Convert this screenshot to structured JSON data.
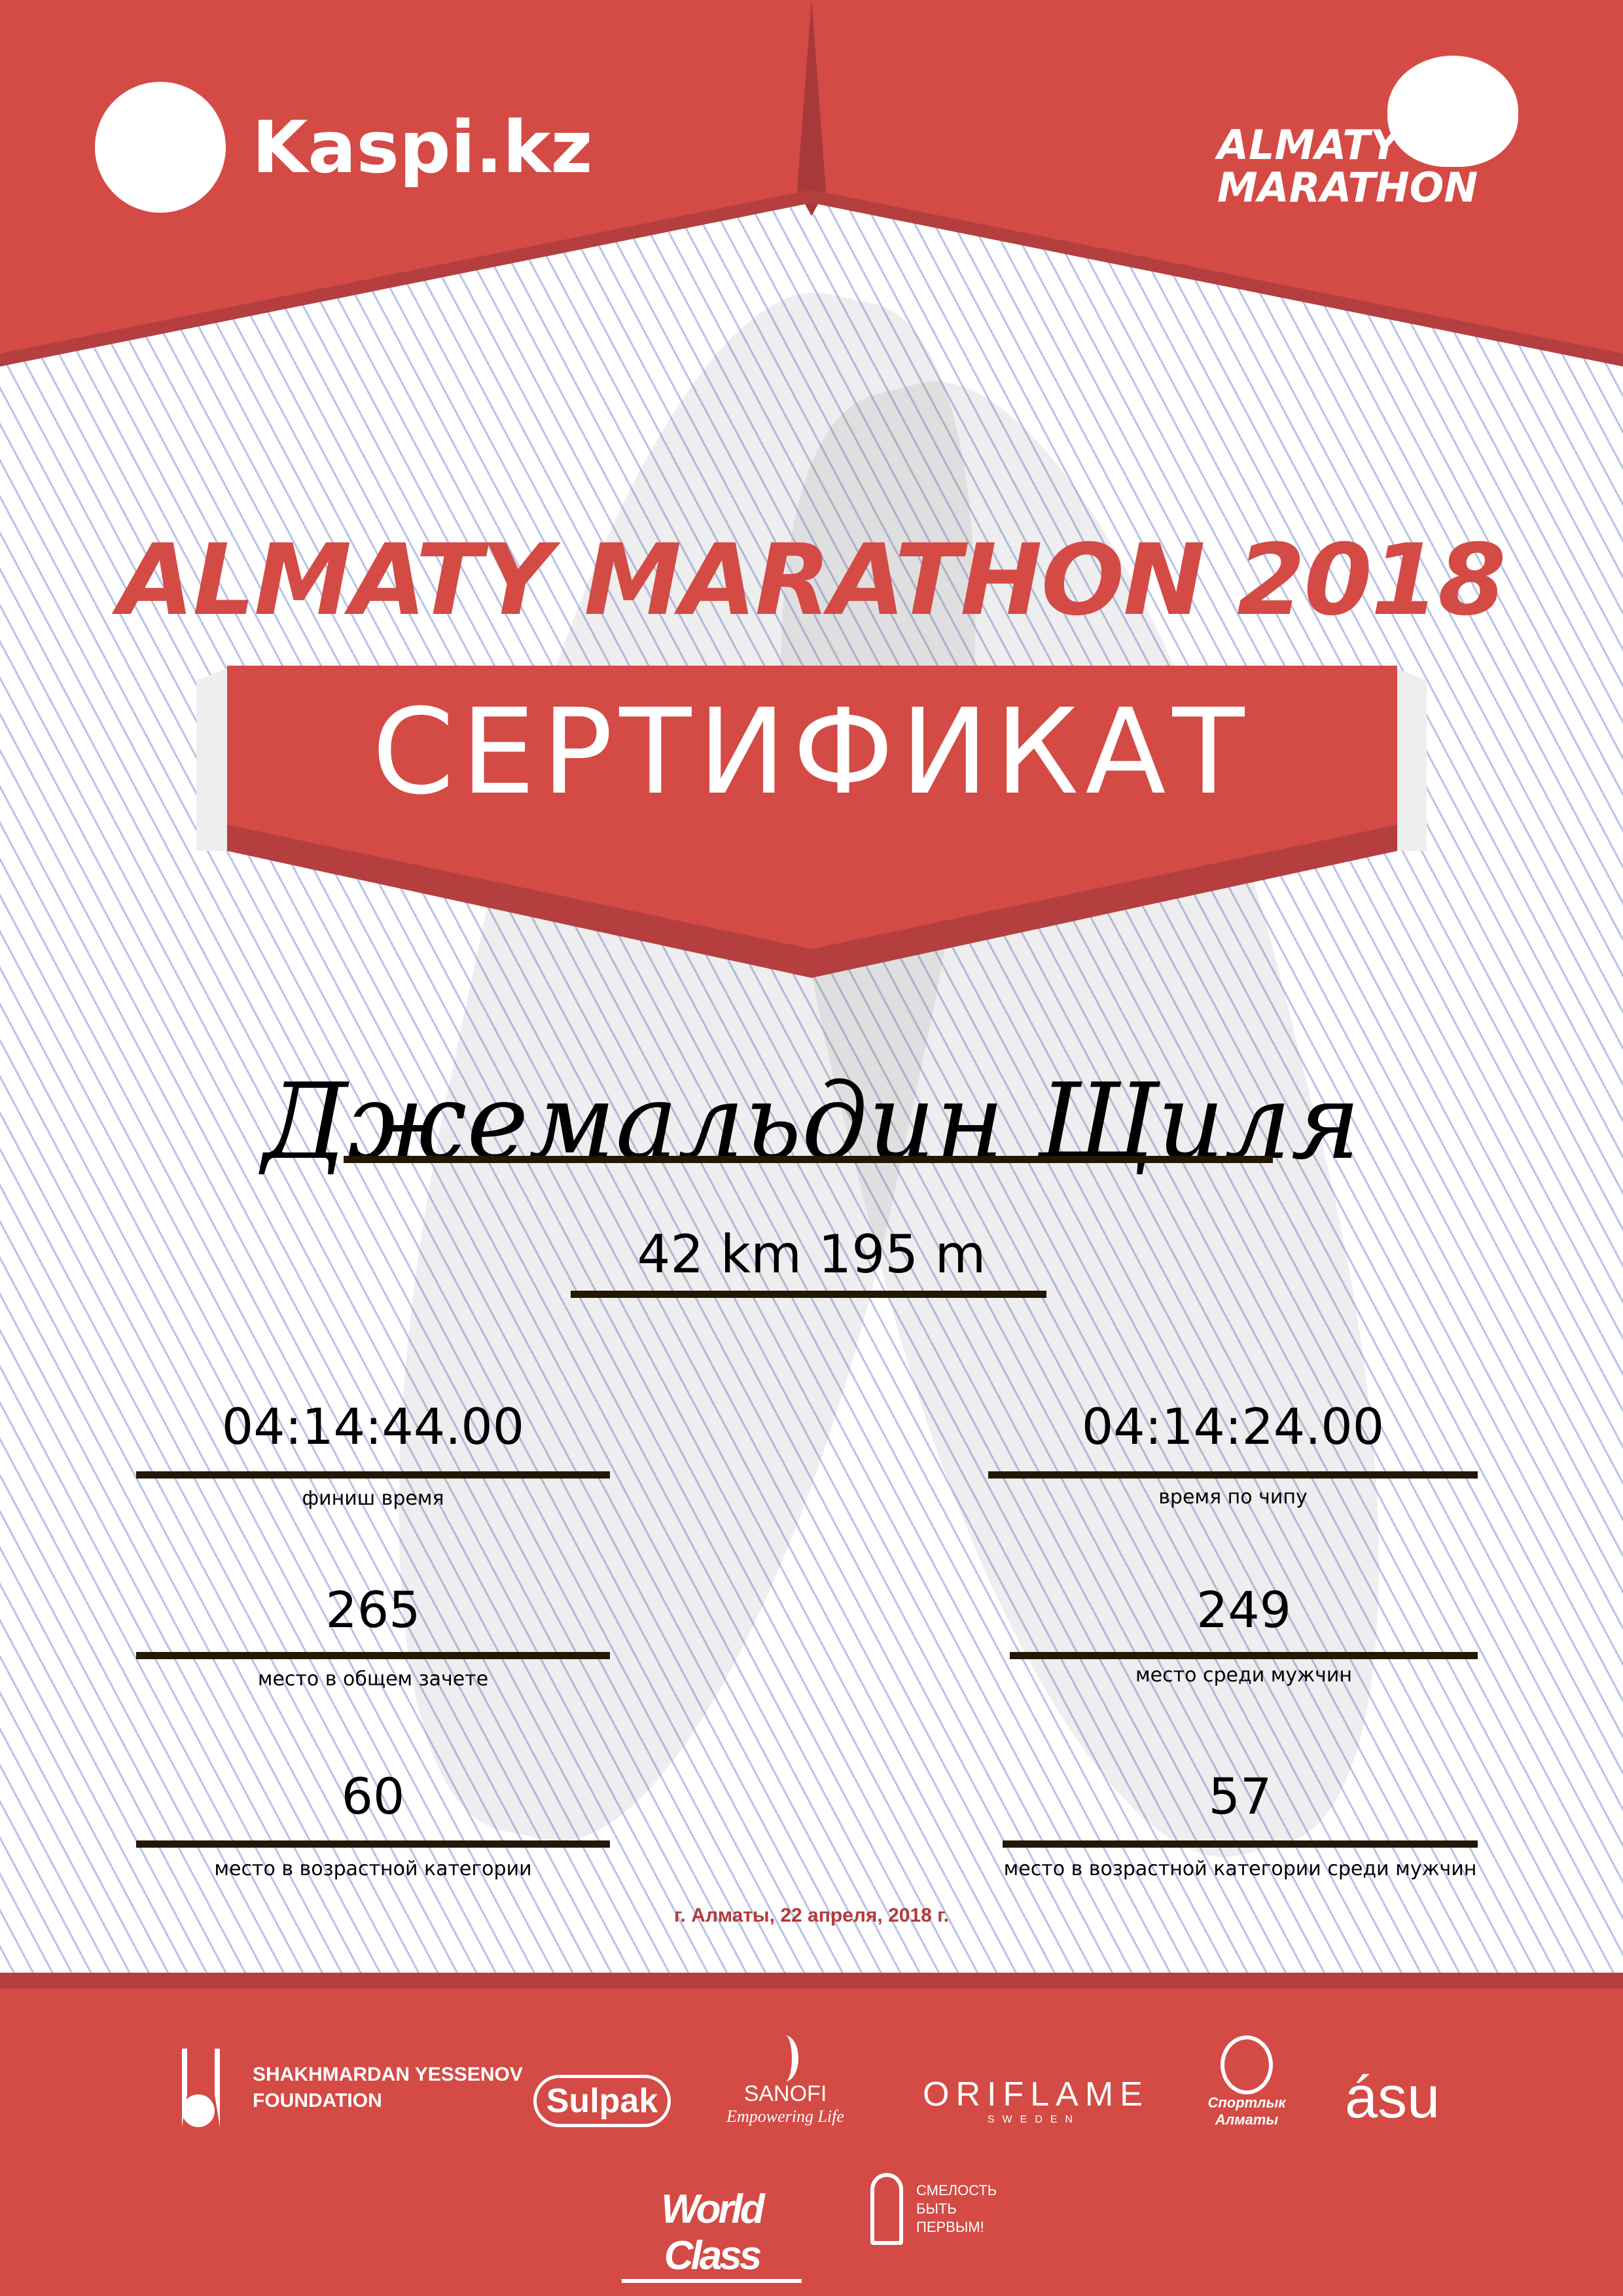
{
  "header": {
    "kaspi_logo": "Kaspi.kz",
    "marathon_logo_line1": "ALMATY",
    "marathon_logo_line2": "MARATHON"
  },
  "title": "ALMATY MARATHON 2018",
  "ribbon": "СЕРТИФИКАТ",
  "participant_name": "Джемальдин Щиля",
  "distance": "42 km 195 m",
  "results": [
    {
      "value": "04:14:44.00",
      "label": "финиш время"
    },
    {
      "value": "04:14:24.00",
      "label": "время по чипу"
    },
    {
      "value": "265",
      "label": "место в общем зачете"
    },
    {
      "value": "249",
      "label": "место среди мужчин"
    },
    {
      "value": "60",
      "label": "место в возрастной категории"
    },
    {
      "value": "57",
      "label": "место в возрастной категории среди мужчин"
    }
  ],
  "date_place": "г. Алматы, 22 апреля, 2018 г.",
  "sponsors": {
    "yessenov1": "SHAKHMARDAN YESSENOV",
    "yessenov2": "FOUNDATION",
    "sulpak": "Sulpak",
    "sanofi": "SANOFI",
    "sanofi_tag": "Empowering Life",
    "oriflame": "ORIFLAME",
    "oriflame_sub": "SWEDEN",
    "sport": "Спортлык Алматы",
    "asu": "ásu",
    "worldclass": "World Class",
    "fond1": "СМЕЛОСТЬ",
    "fond2": "БЫТЬ",
    "fond3": "ПЕРВЫМ!"
  },
  "colors": {
    "brand_red": "#d44a45",
    "dark_red": "#a8393a",
    "line": "#231705"
  }
}
